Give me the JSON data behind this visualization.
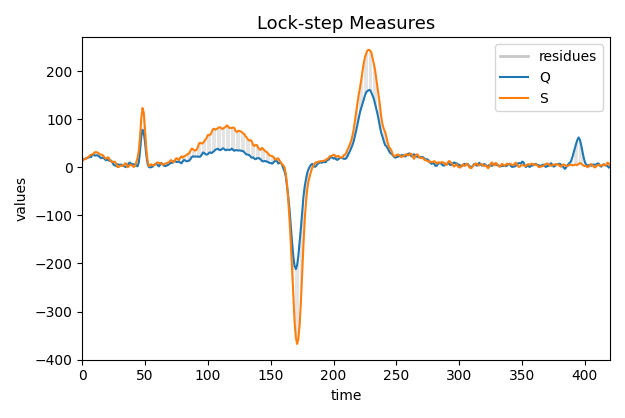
{
  "title": "Lock-step Measures",
  "xlabel": "time",
  "ylabel": "values",
  "legend": [
    "residues",
    "Q",
    "S"
  ],
  "color_Q": "#1f77b4",
  "color_S": "#ff7f0e",
  "color_residues": "#c8c8c8",
  "xlim": [
    0,
    420
  ],
  "ylim": [
    -400,
    270
  ],
  "figsize": [
    6.25,
    4.18
  ],
  "dpi": 100
}
